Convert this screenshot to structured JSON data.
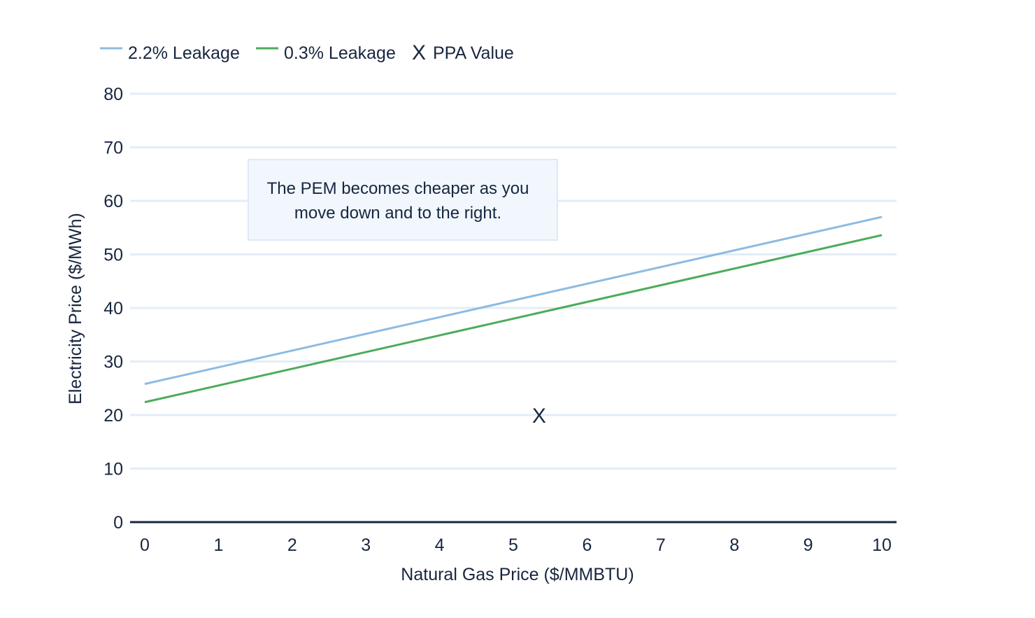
{
  "chart_data": {
    "type": "line",
    "title": "",
    "xlabel": "Natural Gas Price ($/MMBTU)",
    "ylabel": "Electricity Price ($/MWh)",
    "xlim": [
      0,
      10
    ],
    "ylim": [
      0,
      80
    ],
    "xticks": [
      "0",
      "1",
      "2",
      "3",
      "4",
      "5",
      "6",
      "7",
      "8",
      "9",
      "10"
    ],
    "yticks": [
      "0",
      "10",
      "20",
      "30",
      "40",
      "50",
      "60",
      "70",
      "80"
    ],
    "grid": true,
    "legend_position": "top-left",
    "series": [
      {
        "name": "2.2% Leakage",
        "color": "#8dbbe3",
        "x": [
          0,
          10
        ],
        "y": [
          25.8,
          57.0
        ]
      },
      {
        "name": "0.3% Leakage",
        "color": "#4cab5a",
        "x": [
          0,
          10
        ],
        "y": [
          22.4,
          53.6
        ]
      }
    ],
    "points": [
      {
        "name": "PPA Value",
        "marker": "X",
        "x": 5.35,
        "y": 20
      }
    ],
    "annotation": {
      "lines": [
        "The PEM becomes cheaper as you",
        "move down and to the right."
      ]
    }
  },
  "colors": {
    "text": "#17263f",
    "grid": "#e3edf6",
    "axis": "#17263f",
    "note_fill": "#f1f7fd",
    "note_border": "#dde9f6"
  }
}
